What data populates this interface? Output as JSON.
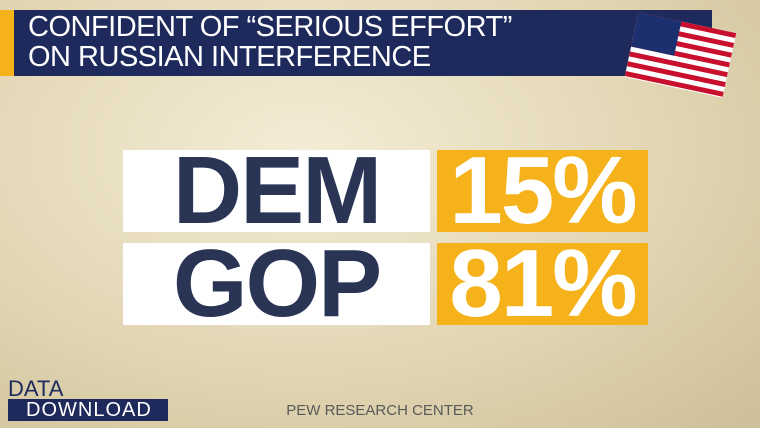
{
  "header": {
    "title_lines": [
      "CONFIDENT OF “SERIOUS EFFORT”",
      "ON RUSSIAN INTERFERENCE"
    ]
  },
  "rows": [
    {
      "label": "DEM",
      "value": "15%"
    },
    {
      "label": "GOP",
      "value": "81%"
    }
  ],
  "logo": {
    "line1": "DATA_",
    "line2": "DOWNLOAD"
  },
  "source": "PEW RESEARCH CENTER"
}
